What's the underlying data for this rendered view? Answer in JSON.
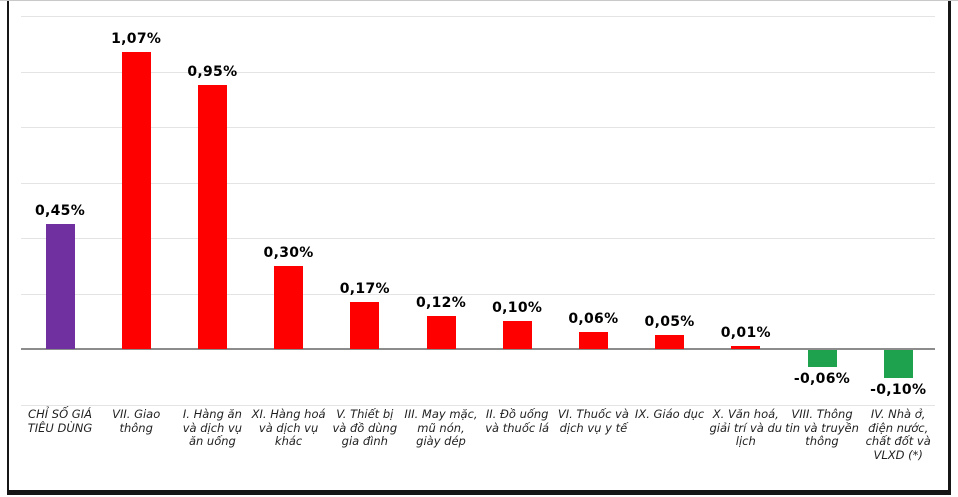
{
  "chart_data": {
    "type": "bar",
    "title": "",
    "xlabel": "",
    "ylabel": "",
    "unit": "%",
    "ylim": [
      -0.2,
      1.2
    ],
    "grid_step": 0.2,
    "grid_visible": true,
    "legend": "none",
    "decimal_separator": ",",
    "categories": [
      "CHỈ SỐ GIÁ TIÊU DÙNG",
      "VII. Giao thông",
      "I. Hàng ăn và dịch vụ ăn uống",
      "XI. Hàng hoá và dịch vụ khác",
      "V. Thiết bị và đồ dùng gia đình",
      "III. May mặc, mũ nón, giày dép",
      "II. Đồ uống và thuốc lá",
      "VI. Thuốc và dịch vụ y tế",
      "IX. Giáo dục",
      "X. Văn hoá, giải trí và du lịch",
      "VIII. Thông tin và truyền thông",
      "IV. Nhà ở, điện nước, chất đốt và VLXD (*)"
    ],
    "values": [
      0.45,
      1.07,
      0.95,
      0.3,
      0.17,
      0.12,
      0.1,
      0.06,
      0.05,
      0.01,
      -0.06,
      -0.1
    ],
    "value_labels": [
      "0,45%",
      "1,07%",
      "0,95%",
      "0,30%",
      "0,17%",
      "0,12%",
      "0,10%",
      "0,06%",
      "0,05%",
      "0,01%",
      "-0,06%",
      "-0,10%"
    ],
    "bar_color_keys": [
      "purple",
      "red",
      "red",
      "red",
      "red",
      "red",
      "red",
      "red",
      "red",
      "red",
      "green",
      "green"
    ],
    "colors": {
      "purple": "#7030A0",
      "red": "#FE0000",
      "green": "#1FA24D",
      "grid": "#E4E4E4",
      "axis": "#8C8C8C",
      "value_text": "#000000",
      "category_text": "#1F1F1F",
      "frame": "#161616",
      "background": "#FFFFFF"
    }
  }
}
